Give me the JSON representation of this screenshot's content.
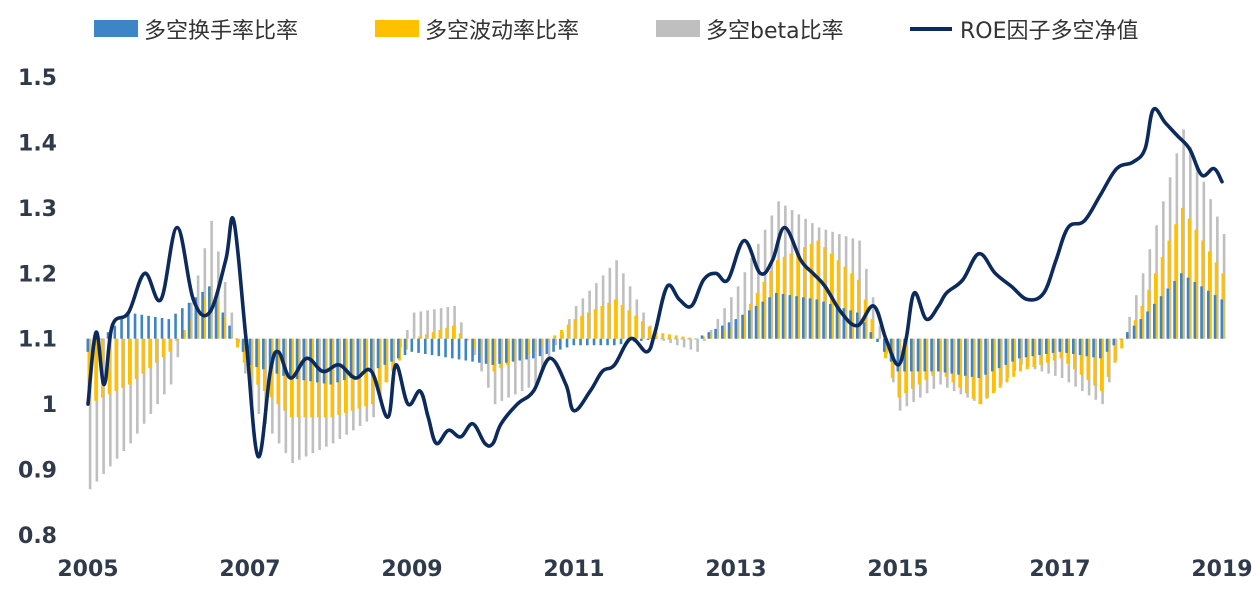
{
  "chart_data": {
    "type": "bar+line",
    "title": "",
    "xlabel": "",
    "ylabel": "",
    "xlim": [
      2005,
      2019
    ],
    "ylim": [
      0.8,
      1.5
    ],
    "baseline": 1.1,
    "grid": false,
    "legend_position": "top",
    "x_ticks": [
      "2005",
      "2007",
      "2009",
      "2011",
      "2013",
      "2015",
      "2017",
      "2019"
    ],
    "y_ticks": [
      "0.8",
      "0.9",
      "1",
      "1.1",
      "1.2",
      "1.3",
      "1.4",
      "1.5"
    ],
    "colors": {
      "turnover": "#3d85c6",
      "volatility": "#ffc000",
      "beta": "#bfbfbf",
      "roe": "#0d2a5c"
    },
    "series": [
      {
        "name": "多空换手率比率",
        "kind": "bar",
        "t": [
          2005.0,
          2005.5,
          2006.0,
          2006.5,
          2007.0,
          2007.5,
          2008.0,
          2008.5,
          2009.0,
          2009.5,
          2010.0,
          2010.5,
          2011.0,
          2011.5,
          2012.0,
          2012.5,
          2013.0,
          2013.5,
          2014.0,
          2014.5,
          2015.0,
          2015.5,
          2016.0,
          2016.5,
          2017.0,
          2017.5,
          2018.0,
          2018.5,
          2019.0
        ],
        "values": [
          1.08,
          1.14,
          1.13,
          1.18,
          1.06,
          1.04,
          1.03,
          1.05,
          1.08,
          1.07,
          1.06,
          1.07,
          1.09,
          1.09,
          1.1,
          1.1,
          1.13,
          1.17,
          1.16,
          1.14,
          1.05,
          1.05,
          1.04,
          1.07,
          1.08,
          1.07,
          1.13,
          1.2,
          1.16
        ]
      },
      {
        "name": "多空波动率比率",
        "kind": "bar",
        "t": [
          2005.0,
          2005.5,
          2006.0,
          2006.5,
          2007.0,
          2007.5,
          2008.0,
          2008.5,
          2009.0,
          2009.5,
          2010.0,
          2010.5,
          2011.0,
          2011.5,
          2012.0,
          2012.5,
          2013.0,
          2013.5,
          2014.0,
          2014.5,
          2015.0,
          2015.5,
          2016.0,
          2016.5,
          2017.0,
          2017.5,
          2018.0,
          2018.5,
          2019.0
        ],
        "values": [
          1.0,
          1.03,
          1.08,
          1.18,
          1.04,
          0.98,
          0.98,
          1.0,
          1.1,
          1.12,
          1.05,
          1.08,
          1.13,
          1.16,
          1.11,
          1.1,
          1.12,
          1.22,
          1.25,
          1.19,
          1.01,
          1.05,
          1.0,
          1.05,
          1.07,
          1.02,
          1.15,
          1.3,
          1.2
        ]
      },
      {
        "name": "多空beta比率",
        "kind": "bar",
        "t": [
          2005.0,
          2005.5,
          2006.0,
          2006.5,
          2007.0,
          2007.5,
          2008.0,
          2008.5,
          2009.0,
          2009.5,
          2010.0,
          2010.5,
          2011.0,
          2011.5,
          2012.0,
          2012.5,
          2013.0,
          2013.5,
          2014.0,
          2014.5,
          2015.0,
          2015.5,
          2016.0,
          2016.5,
          2017.0,
          2017.5,
          2018.0,
          2018.5,
          2019.0
        ],
        "values": [
          0.87,
          0.94,
          1.03,
          1.28,
          1.0,
          0.91,
          0.94,
          0.98,
          1.14,
          1.15,
          1.0,
          1.03,
          1.15,
          1.22,
          1.1,
          1.08,
          1.18,
          1.31,
          1.27,
          1.25,
          0.99,
          1.03,
          1.0,
          1.06,
          1.04,
          1.0,
          1.2,
          1.42,
          1.26
        ]
      },
      {
        "name": "ROE因子多空净值",
        "kind": "line",
        "t": [
          2005.0,
          2005.1,
          2005.2,
          2005.3,
          2005.5,
          2005.7,
          2005.9,
          2006.1,
          2006.3,
          2006.5,
          2006.7,
          2006.8,
          2006.95,
          2007.1,
          2007.25,
          2007.35,
          2007.5,
          2007.7,
          2007.9,
          2008.1,
          2008.3,
          2008.5,
          2008.7,
          2008.8,
          2008.95,
          2009.1,
          2009.2,
          2009.3,
          2009.45,
          2009.6,
          2009.75,
          2009.9,
          2010.0,
          2010.1,
          2010.3,
          2010.5,
          2010.7,
          2010.9,
          2011.0,
          2011.2,
          2011.35,
          2011.5,
          2011.7,
          2011.9,
          2012.0,
          2012.15,
          2012.3,
          2012.45,
          2012.6,
          2012.75,
          2012.9,
          2013.1,
          2013.3,
          2013.45,
          2013.6,
          2013.8,
          2013.95,
          2014.1,
          2014.3,
          2014.5,
          2014.7,
          2014.85,
          2015.0,
          2015.1,
          2015.2,
          2015.35,
          2015.5,
          2015.6,
          2015.8,
          2016.0,
          2016.2,
          2016.4,
          2016.6,
          2016.8,
          2016.95,
          2017.1,
          2017.3,
          2017.5,
          2017.7,
          2017.9,
          2018.05,
          2018.15,
          2018.3,
          2018.45,
          2018.6,
          2018.75,
          2018.9,
          2019.0
        ],
        "values": [
          1.0,
          1.11,
          1.03,
          1.12,
          1.14,
          1.2,
          1.16,
          1.27,
          1.16,
          1.14,
          1.22,
          1.28,
          1.1,
          0.92,
          1.05,
          1.08,
          1.04,
          1.07,
          1.05,
          1.06,
          1.04,
          1.05,
          0.98,
          1.06,
          1.0,
          1.02,
          0.98,
          0.94,
          0.96,
          0.95,
          0.97,
          0.94,
          0.94,
          0.97,
          1.0,
          1.02,
          1.07,
          1.03,
          0.99,
          1.02,
          1.05,
          1.06,
          1.1,
          1.08,
          1.11,
          1.18,
          1.16,
          1.15,
          1.19,
          1.2,
          1.19,
          1.25,
          1.2,
          1.22,
          1.27,
          1.22,
          1.2,
          1.18,
          1.14,
          1.12,
          1.15,
          1.1,
          1.06,
          1.1,
          1.17,
          1.13,
          1.15,
          1.17,
          1.19,
          1.23,
          1.2,
          1.18,
          1.16,
          1.17,
          1.22,
          1.27,
          1.28,
          1.32,
          1.36,
          1.37,
          1.39,
          1.45,
          1.43,
          1.41,
          1.39,
          1.35,
          1.36,
          1.34
        ]
      }
    ]
  }
}
